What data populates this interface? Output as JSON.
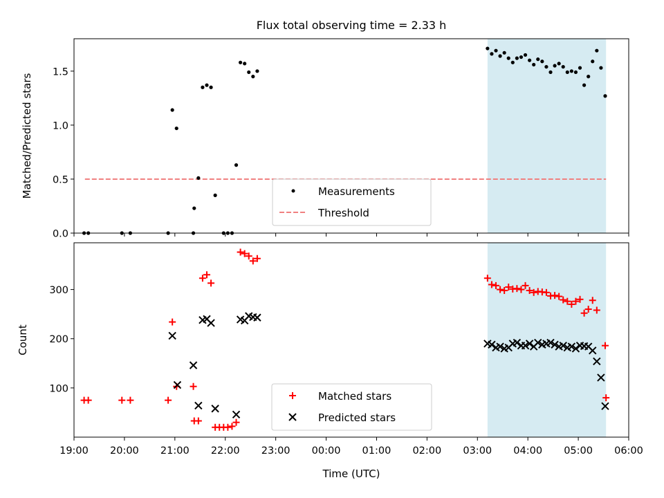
{
  "figure": {
    "title": "Flux total observing time = 2.33 h"
  },
  "colors": {
    "measurement": "#000000",
    "threshold": "#f08080",
    "matched": "#ff0000",
    "predicted": "#000000",
    "shade": "#add8e6"
  },
  "chart_data": [
    {
      "type": "scatter",
      "panel": "top",
      "xlabel": "",
      "ylabel": "Matched/Predicted stars",
      "xlim": [
        "19:00",
        "06:00"
      ],
      "ylim": [
        0,
        1.8
      ],
      "y_ticks": [
        "0.0",
        "0.5",
        "1.0",
        "1.5"
      ],
      "shaded_interval": [
        "03:12",
        "05:33"
      ],
      "legend": {
        "placement": "lower center",
        "entries": [
          "Measurements",
          "Threshold"
        ]
      },
      "threshold": {
        "name": "Threshold",
        "value": 0.5,
        "x_range": [
          "19:13",
          "05:33"
        ],
        "style": "dashed"
      },
      "series": [
        {
          "name": "Measurements",
          "marker": "dot",
          "points": [
            [
              "19:12",
              0
            ],
            [
              "19:17",
              0
            ],
            [
              "19:57",
              0
            ],
            [
              "20:07",
              0
            ],
            [
              "20:52",
              0
            ],
            [
              "20:57",
              1.14
            ],
            [
              "21:02",
              0.97
            ],
            [
              "21:22",
              0
            ],
            [
              "21:23",
              0.23
            ],
            [
              "21:28",
              0.51
            ],
            [
              "21:33",
              1.35
            ],
            [
              "21:38",
              1.37
            ],
            [
              "21:43",
              1.35
            ],
            [
              "21:48",
              0.35
            ],
            [
              "21:58",
              0
            ],
            [
              "22:03",
              0
            ],
            [
              "22:08",
              0
            ],
            [
              "22:13",
              0.63
            ],
            [
              "22:18",
              1.58
            ],
            [
              "22:23",
              1.57
            ],
            [
              "22:28",
              1.49
            ],
            [
              "22:33",
              1.45
            ],
            [
              "22:38",
              1.5
            ],
            [
              "03:12",
              1.71
            ],
            [
              "03:17",
              1.66
            ],
            [
              "03:22",
              1.69
            ],
            [
              "03:27",
              1.64
            ],
            [
              "03:32",
              1.67
            ],
            [
              "03:37",
              1.62
            ],
            [
              "03:42",
              1.58
            ],
            [
              "03:47",
              1.62
            ],
            [
              "03:52",
              1.63
            ],
            [
              "03:57",
              1.65
            ],
            [
              "04:02",
              1.6
            ],
            [
              "04:07",
              1.56
            ],
            [
              "04:12",
              1.61
            ],
            [
              "04:17",
              1.59
            ],
            [
              "04:22",
              1.54
            ],
            [
              "04:27",
              1.49
            ],
            [
              "04:32",
              1.55
            ],
            [
              "04:37",
              1.57
            ],
            [
              "04:42",
              1.54
            ],
            [
              "04:47",
              1.49
            ],
            [
              "04:52",
              1.5
            ],
            [
              "04:57",
              1.49
            ],
            [
              "05:02",
              1.53
            ],
            [
              "05:07",
              1.37
            ],
            [
              "05:12",
              1.45
            ],
            [
              "05:17",
              1.59
            ],
            [
              "05:22",
              1.69
            ],
            [
              "05:27",
              1.53
            ],
            [
              "05:32",
              1.27
            ]
          ]
        }
      ]
    },
    {
      "type": "scatter",
      "panel": "bottom",
      "xlabel": "Time (UTC)",
      "ylabel": "Count",
      "xlim": [
        "19:00",
        "06:00"
      ],
      "ylim": [
        0,
        395
      ],
      "y_ticks": [
        "100",
        "200",
        "300"
      ],
      "x_ticks": [
        "19:00",
        "20:00",
        "21:00",
        "22:00",
        "23:00",
        "00:00",
        "01:00",
        "02:00",
        "03:00",
        "04:00",
        "05:00",
        "06:00"
      ],
      "shaded_interval": [
        "03:12",
        "05:33"
      ],
      "legend": {
        "placement": "lower center",
        "entries": [
          "Matched stars",
          "Predicted stars"
        ]
      },
      "series": [
        {
          "name": "Matched stars",
          "marker": "plus",
          "points": [
            [
              "19:12",
              75
            ],
            [
              "19:17",
              75
            ],
            [
              "19:57",
              75
            ],
            [
              "20:07",
              75
            ],
            [
              "20:52",
              75
            ],
            [
              "20:57",
              234
            ],
            [
              "21:02",
              103
            ],
            [
              "21:22",
              103
            ],
            [
              "21:23",
              33
            ],
            [
              "21:28",
              33
            ],
            [
              "21:33",
              323
            ],
            [
              "21:38",
              330
            ],
            [
              "21:43",
              313
            ],
            [
              "21:48",
              20
            ],
            [
              "21:53",
              20
            ],
            [
              "21:58",
              20
            ],
            [
              "22:03",
              20
            ],
            [
              "22:08",
              22
            ],
            [
              "22:13",
              30
            ],
            [
              "22:18",
              376
            ],
            [
              "22:23",
              373
            ],
            [
              "22:28",
              368
            ],
            [
              "22:33",
              358
            ],
            [
              "22:38",
              363
            ],
            [
              "03:12",
              323
            ],
            [
              "03:17",
              310
            ],
            [
              "03:22",
              308
            ],
            [
              "03:27",
              300
            ],
            [
              "03:32",
              298
            ],
            [
              "03:37",
              305
            ],
            [
              "03:42",
              301
            ],
            [
              "03:47",
              302
            ],
            [
              "03:52",
              300
            ],
            [
              "03:57",
              308
            ],
            [
              "04:02",
              298
            ],
            [
              "04:07",
              294
            ],
            [
              "04:12",
              296
            ],
            [
              "04:17",
              295
            ],
            [
              "04:22",
              294
            ],
            [
              "04:27",
              287
            ],
            [
              "04:32",
              288
            ],
            [
              "04:37",
              286
            ],
            [
              "04:42",
              279
            ],
            [
              "04:47",
              276
            ],
            [
              "04:52",
              270
            ],
            [
              "04:57",
              276
            ],
            [
              "05:02",
              280
            ],
            [
              "05:07",
              252
            ],
            [
              "05:12",
              260
            ],
            [
              "05:17",
              278
            ],
            [
              "05:22",
              258
            ],
            [
              "05:32",
              186
            ],
            [
              "05:33",
              80
            ]
          ]
        },
        {
          "name": "Predicted stars",
          "marker": "cross",
          "points": [
            [
              "20:57",
              206
            ],
            [
              "21:03",
              106
            ],
            [
              "21:22",
              146
            ],
            [
              "21:28",
              64
            ],
            [
              "21:33",
              238
            ],
            [
              "21:38",
              240
            ],
            [
              "21:43",
              232
            ],
            [
              "21:48",
              58
            ],
            [
              "22:13",
              46
            ],
            [
              "22:18",
              239
            ],
            [
              "22:23",
              237
            ],
            [
              "22:28",
              246
            ],
            [
              "22:33",
              244
            ],
            [
              "22:38",
              243
            ],
            [
              "03:12",
              190
            ],
            [
              "03:17",
              188
            ],
            [
              "03:22",
              182
            ],
            [
              "03:27",
              184
            ],
            [
              "03:32",
              180
            ],
            [
              "03:37",
              182
            ],
            [
              "03:42",
              190
            ],
            [
              "03:47",
              192
            ],
            [
              "03:52",
              186
            ],
            [
              "03:57",
              186
            ],
            [
              "04:02",
              190
            ],
            [
              "04:07",
              184
            ],
            [
              "04:12",
              192
            ],
            [
              "04:17",
              188
            ],
            [
              "04:22",
              190
            ],
            [
              "04:27",
              192
            ],
            [
              "04:32",
              188
            ],
            [
              "04:37",
              184
            ],
            [
              "04:42",
              186
            ],
            [
              "04:47",
              182
            ],
            [
              "04:52",
              184
            ],
            [
              "04:57",
              180
            ],
            [
              "05:02",
              186
            ],
            [
              "05:07",
              185
            ],
            [
              "05:12",
              184
            ],
            [
              "05:17",
              176
            ],
            [
              "05:22",
              154
            ],
            [
              "05:27",
              121
            ],
            [
              "05:32",
              63
            ]
          ]
        }
      ]
    }
  ]
}
